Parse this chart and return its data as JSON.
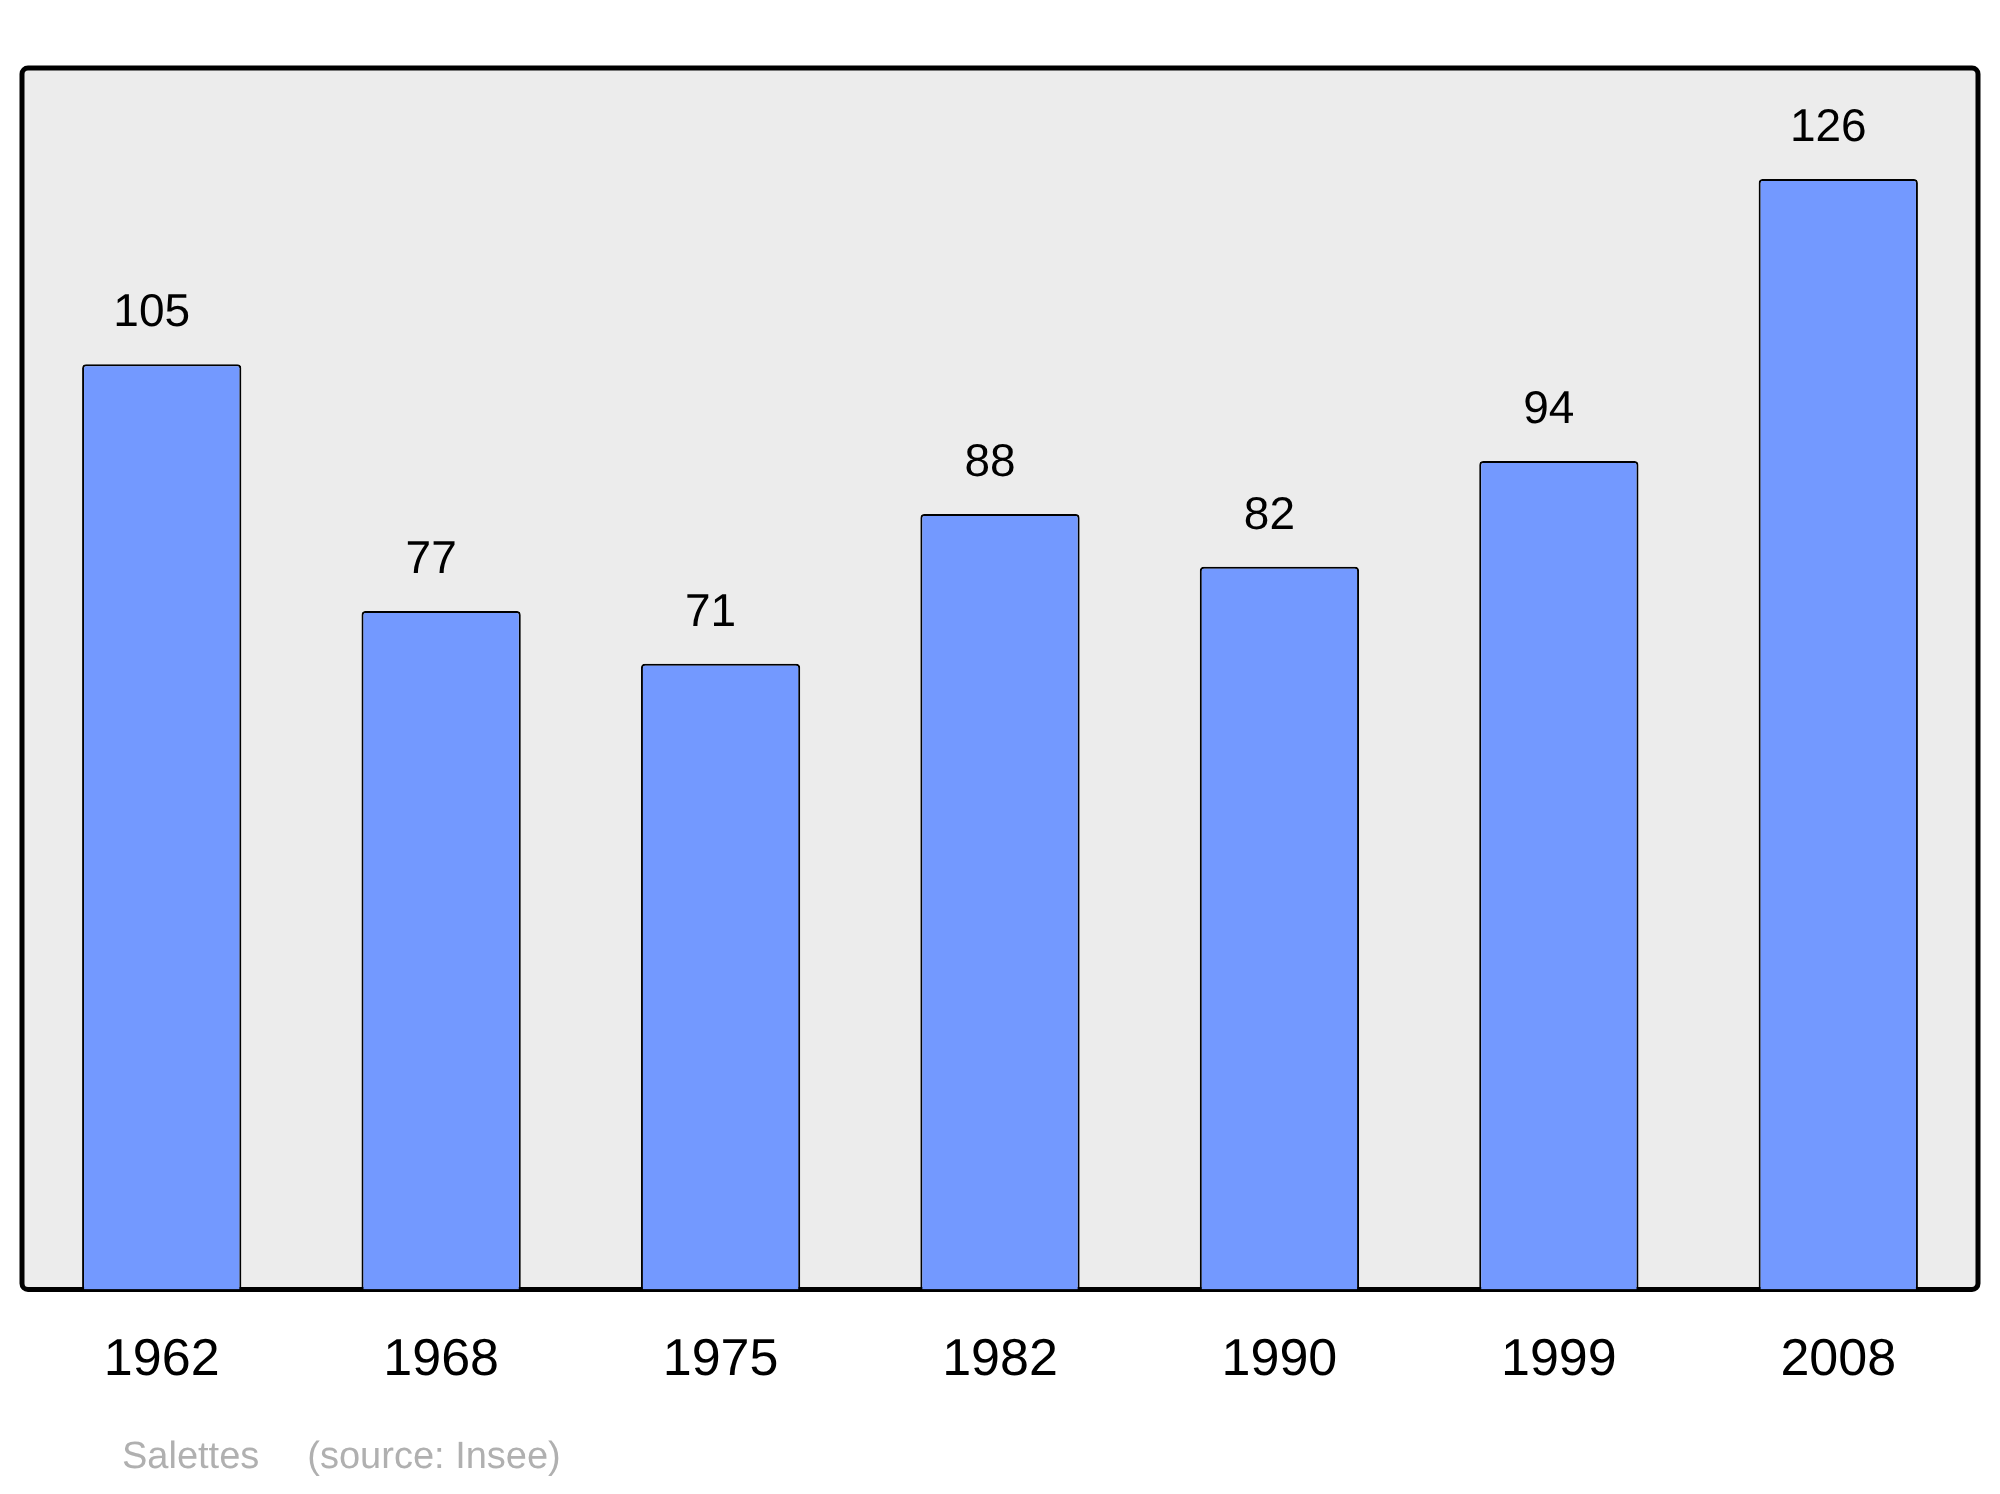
{
  "chart_data": {
    "type": "bar",
    "categories": [
      "1962",
      "1968",
      "1975",
      "1982",
      "1990",
      "1999",
      "2008"
    ],
    "values": [
      105,
      77,
      71,
      88,
      82,
      94,
      126
    ],
    "color": "#7399ff",
    "data_labels": true,
    "grid": false,
    "legend": false,
    "annotations": [
      "Salettes",
      "(source: Insee)"
    ]
  }
}
